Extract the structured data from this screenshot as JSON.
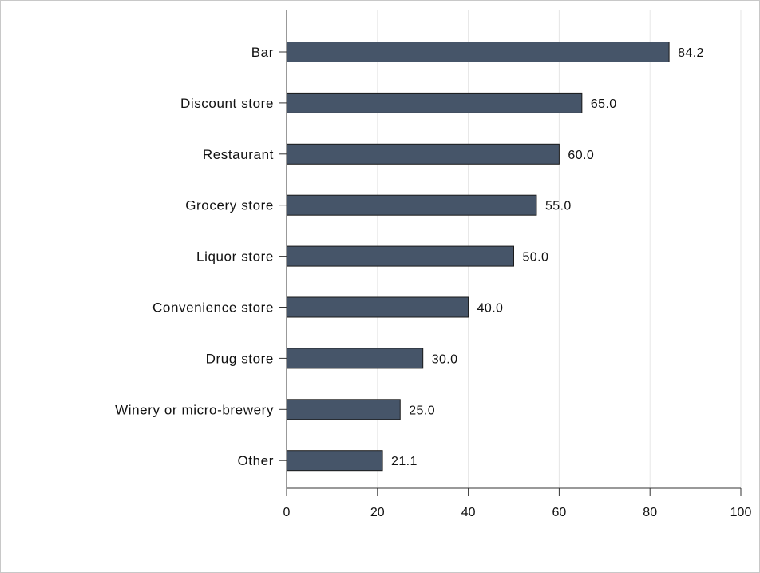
{
  "chart_data": {
    "type": "bar",
    "orientation": "horizontal",
    "categories": [
      "Bar",
      "Discount store",
      "Restaurant",
      "Grocery store",
      "Liquor store",
      "Convenience store",
      "Drug store",
      "Winery or micro-brewery",
      "Other"
    ],
    "values": [
      84.2,
      65.0,
      60.0,
      55.0,
      50.0,
      40.0,
      30.0,
      25.0,
      21.1
    ],
    "value_labels": [
      "84.2",
      "65.0",
      "60.0",
      "55.0",
      "50.0",
      "40.0",
      "30.0",
      "25.0",
      "21.1"
    ],
    "xlim": [
      0,
      100
    ],
    "xticks": [
      0,
      20,
      40,
      60,
      80,
      100
    ],
    "xtick_labels": [
      "0",
      "20",
      "40",
      "60",
      "80",
      "100"
    ],
    "grid": "vertical",
    "title": "",
    "xlabel": "",
    "ylabel": ""
  },
  "colors": {
    "bar": "#465569",
    "bar_edge": "#1a1a1a",
    "grid": "#e6e6e6",
    "axis": "#333333"
  }
}
